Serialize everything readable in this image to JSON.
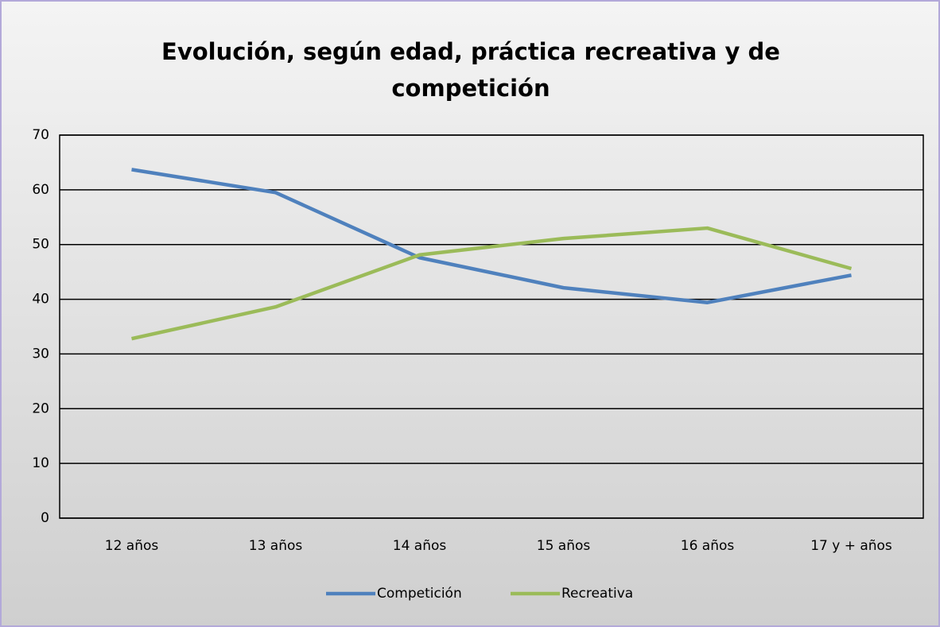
{
  "chart_data": {
    "type": "line",
    "title": "Evolución, según edad, práctica recreativa y de competición",
    "categories": [
      "12 años",
      "13 años",
      "14 años",
      "15 años",
      "16 años",
      "17 y + años"
    ],
    "series": [
      {
        "name": "Competición",
        "color": "#4f81bd",
        "values": [
          63.7,
          59.5,
          47.6,
          42.1,
          39.4,
          44.4
        ]
      },
      {
        "name": "Recreativa",
        "color": "#9bbb59",
        "values": [
          32.8,
          38.6,
          48.1,
          51.1,
          53.0,
          45.6
        ]
      }
    ],
    "ylim": [
      0,
      70
    ],
    "yticks": [
      0,
      10,
      20,
      30,
      40,
      50,
      60,
      70
    ],
    "grid": true,
    "legend": "bottom"
  }
}
